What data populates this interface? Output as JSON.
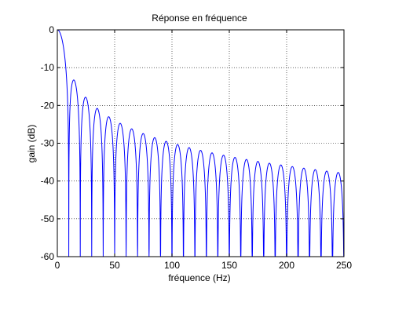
{
  "chart_data": {
    "type": "line",
    "title": "Réponse en fréquence",
    "xlabel": "fréquence (Hz)",
    "ylabel": "gain (dB)",
    "xlim": [
      0,
      250
    ],
    "ylim": [
      -60,
      0
    ],
    "xticks": [
      0,
      50,
      100,
      150,
      200,
      250
    ],
    "yticks": [
      0,
      -10,
      -20,
      -30,
      -40,
      -50,
      -60
    ],
    "grid": true,
    "series": [
      {
        "color": "#0000ff",
        "response": "sinc",
        "null_spacing_hz": 10,
        "description_values": {
          "peak_frequencies_hz": [
            15,
            25,
            35,
            45,
            55,
            65,
            75,
            85,
            95,
            105,
            115,
            125,
            135,
            145,
            155,
            165,
            175,
            185,
            195,
            205,
            215,
            225,
            235,
            245
          ],
          "peak_gain_db": [
            -13.3,
            -17.9,
            -20.9,
            -23.1,
            -24.8,
            -26.3,
            -27.5,
            -28.6,
            -29.5,
            -30.4,
            -31.1,
            -31.8,
            -32.5,
            -33.1,
            -33.7,
            -34.2,
            -34.8,
            -35.2,
            -35.7,
            -36.1,
            -36.5,
            -36.9,
            -37.3,
            -37.7
          ]
        }
      }
    ]
  }
}
